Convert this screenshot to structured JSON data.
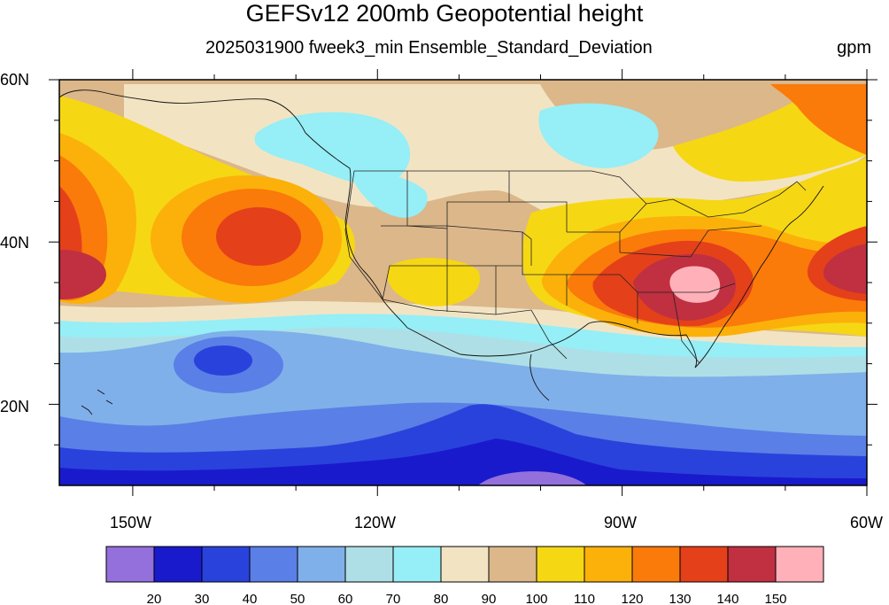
{
  "header": {
    "title": "GEFSv12 200mb Geopotential height",
    "subtitle": "2025031900 fweek3_min Ensemble_Standard_Deviation",
    "units": "gpm"
  },
  "axes": {
    "lat_labels": [
      "60N",
      "40N",
      "20N"
    ],
    "lon_labels": [
      "150W",
      "120W",
      "90W",
      "60W"
    ]
  },
  "colorbar": {
    "colors": [
      "#9370db",
      "#1a1acd",
      "#2a42dc",
      "#5a7fe6",
      "#7fb0ea",
      "#aedfe6",
      "#96eef6",
      "#f2e4c3",
      "#dbb78a",
      "#f6d714",
      "#fbb10a",
      "#fa7a0a",
      "#e4401a",
      "#c03040",
      "#ffb0b8"
    ],
    "labels": [
      "20",
      "30",
      "40",
      "50",
      "60",
      "70",
      "80",
      "90",
      "100",
      "110",
      "120",
      "130",
      "140",
      "150"
    ]
  },
  "chart_data": {
    "type": "heatmap",
    "title": "GEFSv12 200mb Geopotential height",
    "subtitle": "2025031900 fweek3_min Ensemble_Standard_Deviation",
    "units": "gpm",
    "lon_range": [
      -159,
      -60
    ],
    "lat_range": [
      10,
      60
    ],
    "lon_ticks": [
      -150,
      -120,
      -90,
      -60
    ],
    "lat_ticks": [
      20,
      40,
      60
    ],
    "levels": [
      20,
      30,
      40,
      50,
      60,
      70,
      80,
      90,
      100,
      110,
      120,
      130,
      140,
      150
    ],
    "features": [
      {
        "name": "southeast US maximum",
        "lon": -82,
        "lat": 35,
        "value": 150
      },
      {
        "name": "east Pacific maximum",
        "lon": -135,
        "lat": 41,
        "value": 135
      },
      {
        "name": "west edge maximum",
        "lon": -158,
        "lat": 37,
        "value": 140
      },
      {
        "name": "east Atlantic maximum",
        "lon": -62,
        "lat": 38,
        "value": 145
      },
      {
        "name": "subtropical Pacific minimum",
        "lon": -137,
        "lat": 25,
        "value": 35
      },
      {
        "name": "tropical Pacific minimum",
        "lon": -100,
        "lat": 11,
        "value": 20
      },
      {
        "name": "western Canada minimum",
        "lon": -125,
        "lat": 50,
        "value": 75
      },
      {
        "name": "Hudson Bay minimum",
        "lon": -95,
        "lat": 54,
        "value": 75
      }
    ]
  }
}
